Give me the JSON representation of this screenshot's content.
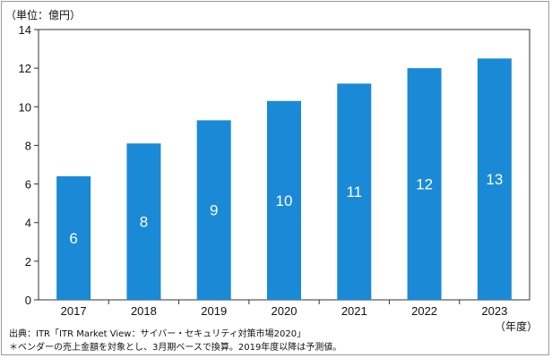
{
  "chart_data": {
    "type": "bar",
    "unit_label": "（単位：億円）",
    "x_unit_label": "（年度）",
    "categories": [
      "2017",
      "2018",
      "2019",
      "2020",
      "2021",
      "2022",
      "2023"
    ],
    "values": [
      6.4,
      8.1,
      9.3,
      10.3,
      11.2,
      12.0,
      12.5
    ],
    "data_labels": [
      "6",
      "8",
      "9",
      "10",
      "11",
      "12",
      "13"
    ],
    "ylim": [
      0,
      14
    ],
    "yticks": [
      0,
      2,
      4,
      6,
      8,
      10,
      12,
      14
    ],
    "bar_color": "#1a8ad6",
    "grid": false
  },
  "notes": {
    "source": "出典：ITR「ITR Market View：サイバー・セキュリティ対策市場2020」",
    "footnote": "＊ベンダーの売上金額を対象とし、3月期ベースで換算。2019年度以降は予測値。"
  }
}
